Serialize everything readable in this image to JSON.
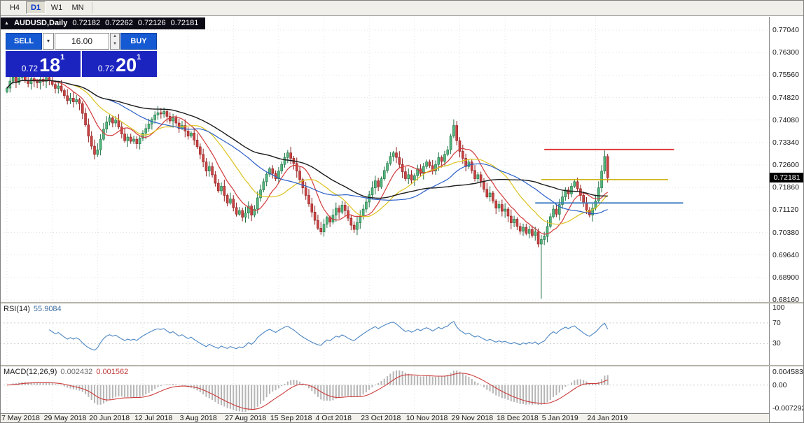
{
  "toolbar": {
    "timeframes": [
      {
        "label": "H4",
        "active": false
      },
      {
        "label": "D1",
        "active": true
      },
      {
        "label": "W1",
        "active": false
      },
      {
        "label": "MN",
        "active": false
      }
    ]
  },
  "icons": {
    "chevron_down": "▾",
    "spinner_up": "▴",
    "spinner_down": "▾",
    "collapse_triangle": "▲"
  },
  "chart_header": {
    "symbol": "AUDUSD,Daily",
    "open": "0.72182",
    "high": "0.72262",
    "low": "0.72126",
    "close": "0.72181"
  },
  "trade_panel": {
    "sell_label": "SELL",
    "buy_label": "BUY",
    "volume": "16.00",
    "sell_price_prefix": "0.72",
    "sell_price_big": "18",
    "sell_price_sup": "1",
    "buy_price_prefix": "0.72",
    "buy_price_big": "20",
    "buy_price_sup": "1",
    "button_color": "#155ad2",
    "box_color": "#1c24c0"
  },
  "price_axis": {
    "labels": [
      "0.77040",
      "0.76300",
      "0.75560",
      "0.74820",
      "0.74080",
      "0.73340",
      "0.72600",
      "0.71860",
      "0.71120",
      "0.70380",
      "0.69640",
      "0.68900",
      "0.68160"
    ],
    "current": "0.72181"
  },
  "rsi_panel": {
    "title": "RSI(14)",
    "value": "55.9084",
    "scale_labels": [
      "100",
      "70",
      "30"
    ]
  },
  "macd_panel": {
    "title": "MACD(12,26,9)",
    "value_main": "0.002432",
    "value_signal": "0.001562",
    "scale_labels": [
      "0.004583",
      "0.00",
      "-0.007292"
    ]
  },
  "time_axis": {
    "labels": [
      {
        "text": "7 May 2018",
        "bar": 0
      },
      {
        "text": "29 May 2018",
        "bar": 15
      },
      {
        "text": "20 Jun 2018",
        "bar": 30
      },
      {
        "text": "12 Jul 2018",
        "bar": 45
      },
      {
        "text": "3 Aug 2018",
        "bar": 60
      },
      {
        "text": "27 Aug 2018",
        "bar": 75
      },
      {
        "text": "15 Sep 2018",
        "bar": 90
      },
      {
        "text": "4 Oct 2018",
        "bar": 105
      },
      {
        "text": "23 Oct 2018",
        "bar": 120
      },
      {
        "text": "10 Nov 2018",
        "bar": 135
      },
      {
        "text": "29 Nov 2018",
        "bar": 150
      },
      {
        "text": "18 Dec 2018",
        "bar": 165
      },
      {
        "text": "5 Jan 2019",
        "bar": 180
      },
      {
        "text": "24 Jan 2019",
        "bar": 195
      }
    ]
  },
  "chart_data": {
    "type": "candlestick",
    "title": "AUDUSD Daily",
    "y_axis": {
      "min": 0.6816,
      "max": 0.7704,
      "ticks": [
        0.7704,
        0.763,
        0.7556,
        0.7482,
        0.7408,
        0.7334,
        0.726,
        0.7186,
        0.7112,
        0.7038,
        0.6964,
        0.689,
        0.6816
      ]
    },
    "closes": [
      0.7513,
      0.7536,
      0.7549,
      0.7531,
      0.7547,
      0.7554,
      0.7539,
      0.7528,
      0.7544,
      0.7536,
      0.753,
      0.7542,
      0.7535,
      0.7548,
      0.7537,
      0.7525,
      0.7512,
      0.752,
      0.7505,
      0.7488,
      0.7472,
      0.748,
      0.7468,
      0.7475,
      0.7462,
      0.743,
      0.7392,
      0.7355,
      0.7322,
      0.7295,
      0.731,
      0.7345,
      0.7378,
      0.7402,
      0.7415,
      0.7398,
      0.7408,
      0.7385,
      0.7362,
      0.734,
      0.7352,
      0.7338,
      0.7345,
      0.733,
      0.7348,
      0.7365,
      0.738,
      0.7395,
      0.741,
      0.7425,
      0.7432,
      0.7428,
      0.7436,
      0.742,
      0.7405,
      0.7415,
      0.7398,
      0.738,
      0.739,
      0.7372,
      0.7355,
      0.7365,
      0.7342,
      0.732,
      0.7295,
      0.727,
      0.724,
      0.7255,
      0.7228,
      0.72,
      0.7175,
      0.719,
      0.716,
      0.7135,
      0.7148,
      0.712,
      0.7098,
      0.711,
      0.7088,
      0.7102,
      0.7125,
      0.7095,
      0.7115,
      0.7152,
      0.7178,
      0.7205,
      0.723,
      0.7248,
      0.7232,
      0.7215,
      0.724,
      0.7262,
      0.7285,
      0.73,
      0.7282,
      0.7265,
      0.724,
      0.7212,
      0.7185,
      0.716,
      0.7132,
      0.7105,
      0.7078,
      0.7052,
      0.704,
      0.7065,
      0.7088,
      0.7072,
      0.7095,
      0.7118,
      0.7105,
      0.7128,
      0.711,
      0.7085,
      0.7062,
      0.7048,
      0.707,
      0.7092,
      0.7115,
      0.7138,
      0.7162,
      0.7185,
      0.7208,
      0.7188,
      0.7215,
      0.7242,
      0.7265,
      0.7288,
      0.73,
      0.7285,
      0.7262,
      0.7238,
      0.7215,
      0.7228,
      0.721,
      0.7225,
      0.7248,
      0.7232,
      0.7255,
      0.727,
      0.7258,
      0.724,
      0.7262,
      0.7285,
      0.7272,
      0.7295,
      0.731,
      0.7355,
      0.739,
      0.734,
      0.7305,
      0.7282,
      0.7255,
      0.727,
      0.7242,
      0.7215,
      0.7228,
      0.7205,
      0.718,
      0.7155,
      0.7168,
      0.7142,
      0.7118,
      0.713,
      0.7108,
      0.7115,
      0.7092,
      0.707,
      0.7082,
      0.7058,
      0.7042,
      0.7055,
      0.7035,
      0.7048,
      0.7028,
      0.704,
      0.7,
      0.7015,
      0.7025,
      0.7058,
      0.709,
      0.7115,
      0.7098,
      0.713,
      0.7155,
      0.7178,
      0.7165,
      0.719,
      0.7205,
      0.7182,
      0.716,
      0.7135,
      0.7112,
      0.7095,
      0.7118,
      0.7142,
      0.7185,
      0.724,
      0.7288,
      0.7218
    ],
    "overrides": {
      "177": {
        "low": 0.682,
        "high": 0.703
      },
      "198": {
        "high": 0.7308
      }
    },
    "candle_up_color": "#54b87e",
    "candle_up_edge": "#1e6f43",
    "candle_down_color": "#c94343",
    "candle_down_edge": "#8f1f1f",
    "grid_color": "#e4e4e4",
    "moving_averages": [
      {
        "period": 9,
        "color": "#d23a3a"
      },
      {
        "period": 20,
        "color": "#dcc21e"
      },
      {
        "period": 34,
        "color": "#2a5fc8"
      },
      {
        "period": 55,
        "color": "#1c1c1c"
      }
    ],
    "drawings": [
      {
        "type": "hline",
        "price": 0.7311,
        "bar1": 178,
        "bar2": 221,
        "color": "#e03030",
        "width": 1.8
      },
      {
        "type": "hline",
        "price": 0.7212,
        "bar1": 177,
        "bar2": 219,
        "color": "#c8ad00",
        "width": 1.6
      },
      {
        "type": "hline",
        "price": 0.7135,
        "bar1": 175,
        "bar2": 224,
        "color": "#3879c0",
        "width": 1.8
      }
    ],
    "rsi": {
      "period": 14,
      "current": 55.9084,
      "levels": [
        100,
        70,
        30
      ],
      "color": "#4c86c2"
    },
    "macd": {
      "fast": 12,
      "slow": 26,
      "signal": 9,
      "current_macd": 0.002432,
      "current_signal": 0.001562,
      "scale_max": 0.004583,
      "scale_min": -0.007292,
      "histogram_color": "#b5b5b5",
      "signal_color": "#cc3b3b"
    }
  }
}
